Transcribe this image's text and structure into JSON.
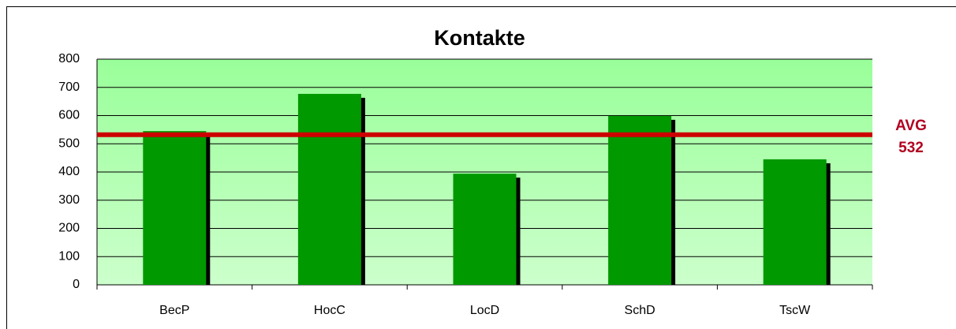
{
  "chart_data": {
    "type": "bar",
    "title": "Kontakte",
    "categories": [
      "BecP",
      "HocC",
      "LocD",
      "SchD",
      "TscW"
    ],
    "values": [
      545,
      677,
      394,
      599,
      445
    ],
    "color": "#009900",
    "ylim": [
      0,
      800
    ],
    "yticks": [
      0,
      100,
      200,
      300,
      400,
      500,
      600,
      700,
      800
    ],
    "grid": true,
    "average": {
      "label": "AVG",
      "value": 532,
      "color": "#cc0000"
    }
  }
}
